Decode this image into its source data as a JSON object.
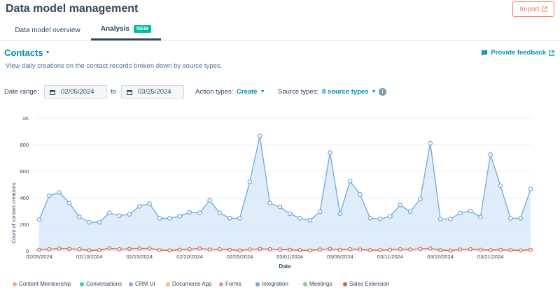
{
  "header": {
    "title": "Data model management",
    "import_label": "Import"
  },
  "tabs": [
    {
      "label": "Data model overview"
    },
    {
      "label": "Analysis",
      "badge": "NEW"
    }
  ],
  "section": {
    "title": "Contacts",
    "feedback_label": "Provide feedback",
    "subtitle": "View daily creations on the contact records broken down by source types."
  },
  "filters": {
    "date_range_label": "Date range:",
    "start_date": "02/05/2024",
    "to_label": "to",
    "end_date": "03/25/2024",
    "action_types_label": "Action types:",
    "action_types_value": "Create",
    "source_types_label": "Source types:",
    "source_types_value": "8 source types"
  },
  "colors": {
    "accent": "#0091ae",
    "import": "#ff7a59",
    "badge": "#00bda5",
    "integration": "#6fa8dc",
    "sales_extension": "#d9603b"
  },
  "chart_data": {
    "type": "area",
    "xlabel": "Date",
    "ylabel": "Count of contact creations",
    "ylim": [
      0,
      1000
    ],
    "y_ticks": [
      "0",
      "200",
      "400",
      "600",
      "800",
      "1K"
    ],
    "x_tick_labels": [
      "02/05/2024",
      "02/10/2024",
      "02/15/2024",
      "02/20/2024",
      "02/25/2024",
      "03/01/2024",
      "03/06/2024",
      "03/11/2024",
      "03/16/2024",
      "03/21/2024"
    ],
    "x": [
      "02/05/2024",
      "02/06/2024",
      "02/07/2024",
      "02/08/2024",
      "02/09/2024",
      "02/10/2024",
      "02/11/2024",
      "02/12/2024",
      "02/13/2024",
      "02/14/2024",
      "02/15/2024",
      "02/16/2024",
      "02/17/2024",
      "02/18/2024",
      "02/19/2024",
      "02/20/2024",
      "02/21/2024",
      "02/22/2024",
      "02/23/2024",
      "02/24/2024",
      "02/25/2024",
      "02/26/2024",
      "02/27/2024",
      "02/28/2024",
      "02/29/2024",
      "03/01/2024",
      "03/02/2024",
      "03/03/2024",
      "03/04/2024",
      "03/05/2024",
      "03/06/2024",
      "03/07/2024",
      "03/08/2024",
      "03/09/2024",
      "03/10/2024",
      "03/11/2024",
      "03/12/2024",
      "03/13/2024",
      "03/14/2024",
      "03/15/2024",
      "03/16/2024",
      "03/17/2024",
      "03/18/2024",
      "03/19/2024",
      "03/20/2024",
      "03/21/2024",
      "03/22/2024",
      "03/23/2024",
      "03/24/2024",
      "03/25/2024"
    ],
    "series": [
      {
        "name": "Integration",
        "color": "#6fa8dc",
        "values": [
          235,
          415,
          440,
          360,
          255,
          215,
          215,
          285,
          265,
          275,
          335,
          355,
          245,
          245,
          260,
          290,
          285,
          380,
          285,
          245,
          245,
          520,
          865,
          360,
          330,
          280,
          245,
          230,
          295,
          740,
          280,
          525,
          425,
          245,
          240,
          260,
          345,
          295,
          390,
          810,
          240,
          240,
          285,
          300,
          255,
          725,
          490,
          245,
          245,
          465
        ]
      },
      {
        "name": "Sales Extension",
        "color": "#d9603b",
        "values": [
          8,
          12,
          18,
          15,
          12,
          3,
          5,
          20,
          12,
          15,
          18,
          18,
          5,
          3,
          8,
          12,
          18,
          10,
          12,
          8,
          3,
          10,
          15,
          12,
          10,
          8,
          5,
          3,
          10,
          15,
          8,
          12,
          10,
          5,
          5,
          8,
          12,
          10,
          15,
          18,
          5,
          3,
          10,
          12,
          8,
          5,
          8,
          5,
          3,
          8
        ]
      }
    ],
    "legend": [
      {
        "name": "Content Membership",
        "color": "#f6a38c"
      },
      {
        "name": "Conversations",
        "color": "#4fc3c7"
      },
      {
        "name": "CRM UI",
        "color": "#9aa3e0"
      },
      {
        "name": "Documents App",
        "color": "#f5b982"
      },
      {
        "name": "Forms",
        "color": "#e88aa8"
      },
      {
        "name": "Integration",
        "color": "#6fa8dc"
      },
      {
        "name": "Meetings",
        "color": "#7fcf8a"
      },
      {
        "name": "Sales Extension",
        "color": "#d9603b"
      }
    ]
  }
}
